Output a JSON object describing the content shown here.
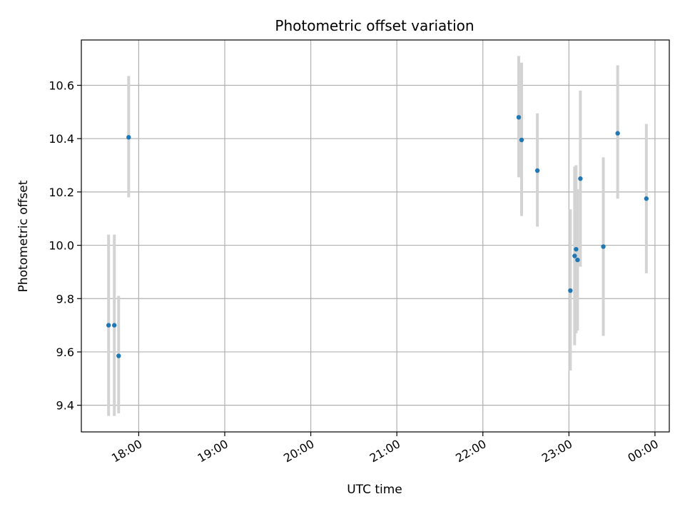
{
  "chart_data": {
    "type": "scatter",
    "title": "Photometric offset variation",
    "xlabel": "UTC time",
    "ylabel": "Photometric offset",
    "xlim": [
      "17:20",
      "00:10"
    ],
    "ylim": [
      9.3,
      10.77
    ],
    "x_ticks": [
      "18:00",
      "19:00",
      "20:00",
      "21:00",
      "22:00",
      "23:00",
      "00:00"
    ],
    "y_ticks": [
      9.4,
      9.6,
      9.8,
      10.0,
      10.2,
      10.4,
      10.6
    ],
    "y_tick_labels": [
      "9.4",
      "9.6",
      "9.8",
      "10.0",
      "10.2",
      "10.4",
      "10.6"
    ],
    "grid": true,
    "legend": "none",
    "colors": {
      "points": "#1f77b4",
      "error_bars": "#d3d3d3",
      "grid": "#b0b0b0"
    },
    "points": [
      {
        "time": "17:39",
        "y": 9.7,
        "y_low": 9.36,
        "y_high": 10.04
      },
      {
        "time": "17:43",
        "y": 9.7,
        "y_low": 9.36,
        "y_high": 10.04
      },
      {
        "time": "17:46",
        "y": 9.585,
        "y_low": 9.37,
        "y_high": 9.81
      },
      {
        "time": "17:53",
        "y": 10.405,
        "y_low": 10.18,
        "y_high": 10.635
      },
      {
        "time": "22:25",
        "y": 10.48,
        "y_low": 10.255,
        "y_high": 10.71
      },
      {
        "time": "22:27",
        "y": 10.395,
        "y_low": 10.11,
        "y_high": 10.685
      },
      {
        "time": "22:38",
        "y": 10.28,
        "y_low": 10.07,
        "y_high": 10.495
      },
      {
        "time": "23:01",
        "y": 9.83,
        "y_low": 9.53,
        "y_high": 10.135
      },
      {
        "time": "23:04",
        "y": 9.96,
        "y_low": 9.625,
        "y_high": 10.295
      },
      {
        "time": "23:05",
        "y": 9.985,
        "y_low": 9.67,
        "y_high": 10.3
      },
      {
        "time": "23:06",
        "y": 9.945,
        "y_low": 9.68,
        "y_high": 10.21
      },
      {
        "time": "23:08",
        "y": 10.25,
        "y_low": 9.92,
        "y_high": 10.58
      },
      {
        "time": "23:24",
        "y": 9.995,
        "y_low": 9.66,
        "y_high": 10.33
      },
      {
        "time": "23:34",
        "y": 10.42,
        "y_low": 10.175,
        "y_high": 10.675
      },
      {
        "time": "23:54",
        "y": 10.175,
        "y_low": 9.895,
        "y_high": 10.455
      }
    ]
  }
}
